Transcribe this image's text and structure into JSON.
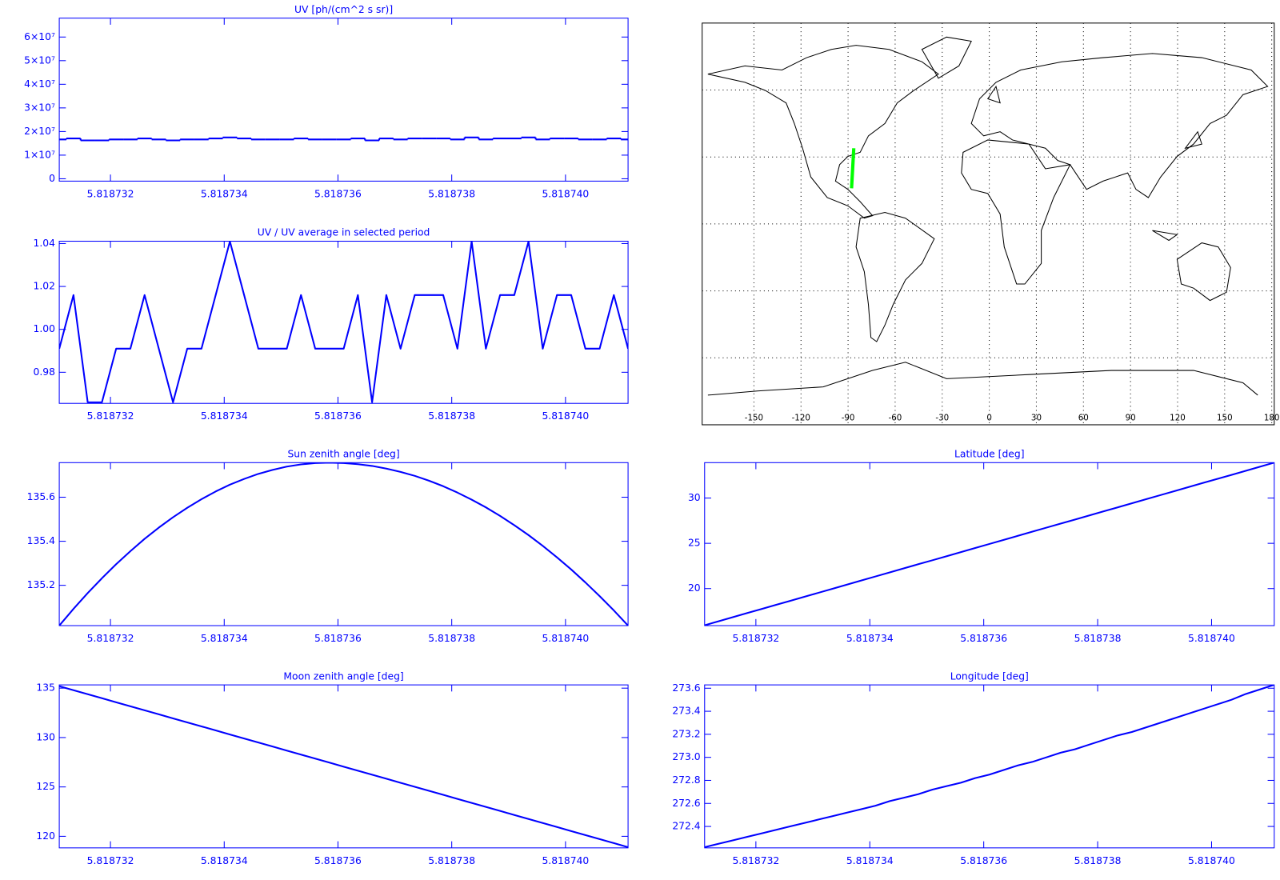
{
  "chart_data": [
    {
      "type": "line",
      "title": "UV [ph/(cm^2 s sr)]",
      "drawstyle": "steps",
      "color": "#0000ff",
      "x": [
        5.8187311,
        5.81873135,
        5.8187316,
        5.81873185,
        5.8187321,
        5.81873235,
        5.8187326,
        5.81873285,
        5.8187331,
        5.81873335,
        5.8187336,
        5.81873385,
        5.8187341,
        5.81873435,
        5.8187346,
        5.81873485,
        5.8187351,
        5.81873535,
        5.8187356,
        5.81873585,
        5.8187361,
        5.81873635,
        5.8187366,
        5.81873685,
        5.8187371,
        5.81873735,
        5.8187376,
        5.81873785,
        5.8187381,
        5.81873835,
        5.8187386,
        5.81873885,
        5.8187391,
        5.81873935,
        5.8187396,
        5.81873985,
        5.8187401,
        5.81874035,
        5.8187406,
        5.81874085,
        5.8187411
      ],
      "values": [
        16650000,
        17070000,
        16230000,
        16230000,
        16650000,
        16650000,
        17070000,
        16650000,
        16230000,
        16650000,
        16650000,
        17070000,
        17490000,
        17070000,
        16650000,
        16650000,
        16650000,
        17070000,
        16650000,
        16650000,
        16650000,
        17070000,
        16230000,
        17070000,
        16650000,
        17070000,
        17070000,
        17070000,
        16650000,
        17490000,
        16650000,
        17070000,
        17070000,
        17490000,
        16650000,
        17070000,
        17070000,
        16650000,
        16650000,
        17070000,
        16650000
      ],
      "xlim": [
        5.8187311,
        5.8187411
      ],
      "xticks": [
        5.818732,
        5.818734,
        5.818736,
        5.818738,
        {
          "value": 5.81874,
          "label": "5.818740"
        }
      ],
      "ylim": [
        -1000000,
        68000000
      ],
      "yticks": [
        0,
        {
          "value": 10000000,
          "label": "1×10⁷"
        },
        {
          "value": 20000000,
          "label": "2×10⁷"
        },
        {
          "value": 30000000,
          "label": "3×10⁷"
        },
        {
          "value": 40000000,
          "label": "4×10⁷"
        },
        {
          "value": 50000000,
          "label": "5×10⁷"
        },
        {
          "value": 60000000,
          "label": "6×10⁷"
        }
      ]
    },
    {
      "type": "line",
      "title": "UV / UV average in selected period",
      "color": "#0000ff",
      "x": [
        5.8187311,
        5.81873135,
        5.8187316,
        5.81873185,
        5.8187321,
        5.81873235,
        5.8187326,
        5.81873285,
        5.8187331,
        5.81873335,
        5.8187336,
        5.81873385,
        5.8187341,
        5.81873435,
        5.8187346,
        5.81873485,
        5.8187351,
        5.81873535,
        5.8187356,
        5.81873585,
        5.8187361,
        5.81873635,
        5.8187366,
        5.81873685,
        5.8187371,
        5.81873735,
        5.8187376,
        5.81873785,
        5.8187381,
        5.81873835,
        5.8187386,
        5.81873885,
        5.8187391,
        5.81873935,
        5.8187396,
        5.81873985,
        5.8187401,
        5.81874035,
        5.8187406,
        5.81874085,
        5.8187411
      ],
      "values": [
        0.991,
        1.016,
        0.966,
        0.966,
        0.991,
        0.991,
        1.016,
        0.991,
        0.966,
        0.991,
        0.991,
        1.016,
        1.041,
        1.016,
        0.991,
        0.991,
        0.991,
        1.016,
        0.991,
        0.991,
        0.991,
        1.016,
        0.966,
        1.016,
        0.991,
        1.016,
        1.016,
        1.016,
        0.991,
        1.041,
        0.991,
        1.016,
        1.016,
        1.041,
        0.991,
        1.016,
        1.016,
        0.991,
        0.991,
        1.016,
        0.991
      ],
      "xlim": [
        5.8187311,
        5.8187411
      ],
      "xticks": [
        5.818732,
        5.818734,
        5.818736,
        5.818738,
        {
          "value": 5.81874,
          "label": "5.818740"
        }
      ],
      "ylim": [
        0.9655,
        1.0411
      ],
      "yticks": [
        0.98,
        {
          "value": 1,
          "label": "1.00"
        },
        1.02,
        1.04
      ]
    },
    {
      "type": "line",
      "title": "Sun zenith angle [deg]",
      "color": "#0000ff",
      "x": [
        5.8187311,
        5.81873135,
        5.8187316,
        5.81873185,
        5.8187321,
        5.81873235,
        5.8187326,
        5.81873285,
        5.8187331,
        5.81873335,
        5.8187336,
        5.81873385,
        5.8187341,
        5.81873435,
        5.8187346,
        5.81873485,
        5.8187351,
        5.81873535,
        5.8187356,
        5.81873585,
        5.8187361,
        5.81873635,
        5.8187366,
        5.81873685,
        5.8187371,
        5.81873735,
        5.8187376,
        5.81873785,
        5.8187381,
        5.81873835,
        5.8187386,
        5.81873885,
        5.8187391,
        5.81873935,
        5.8187396,
        5.81873985,
        5.8187401,
        5.81874035,
        5.8187406,
        5.81874085,
        5.8187411
      ],
      "values": [
        135.017,
        135.093,
        135.165,
        135.232,
        135.296,
        135.355,
        135.411,
        135.462,
        135.509,
        135.552,
        135.591,
        135.626,
        135.657,
        135.683,
        135.706,
        135.724,
        135.739,
        135.749,
        135.755,
        135.757,
        135.755,
        135.75,
        135.742,
        135.73,
        135.715,
        135.697,
        135.675,
        135.65,
        135.621,
        135.589,
        135.554,
        135.515,
        135.473,
        135.428,
        135.379,
        135.327,
        135.272,
        135.213,
        135.151,
        135.086,
        135.017
      ],
      "xlim": [
        5.8187311,
        5.8187411
      ],
      "xticks": [
        5.818732,
        5.818734,
        5.818736,
        5.818738,
        {
          "value": 5.81874,
          "label": "5.818740"
        }
      ],
      "ylim": [
        135.017,
        135.757
      ],
      "yticks": [
        135.2,
        135.4,
        135.6
      ]
    },
    {
      "type": "line",
      "title": "Moon zenith angle [deg]",
      "color": "#0000ff",
      "x": [
        5.8187311,
        5.81873135,
        5.8187316,
        5.81873185,
        5.8187321,
        5.81873235,
        5.8187326,
        5.81873285,
        5.8187331,
        5.81873335,
        5.8187336,
        5.81873385,
        5.8187341,
        5.81873435,
        5.8187346,
        5.81873485,
        5.8187351,
        5.81873535,
        5.8187356,
        5.81873585,
        5.8187361,
        5.81873635,
        5.8187366,
        5.81873685,
        5.8187371,
        5.81873735,
        5.8187376,
        5.81873785,
        5.8187381,
        5.81873835,
        5.8187386,
        5.81873885,
        5.8187391,
        5.81873935,
        5.8187396,
        5.81873985,
        5.8187401,
        5.81874035,
        5.8187406,
        5.81874085,
        5.8187411
      ],
      "values": [
        135.2,
        134.79,
        134.39,
        133.98,
        133.57,
        133.16,
        132.76,
        132.35,
        131.94,
        131.53,
        131.13,
        130.72,
        130.31,
        129.9,
        129.5,
        129.09,
        128.68,
        128.27,
        127.87,
        127.46,
        127.05,
        126.64,
        126.24,
        125.83,
        125.42,
        125.01,
        124.61,
        124.2,
        123.79,
        123.38,
        122.98,
        122.57,
        122.16,
        121.75,
        121.35,
        120.94,
        120.53,
        120.12,
        119.72,
        119.31,
        118.9
      ],
      "xlim": [
        5.8187311,
        5.8187411
      ],
      "xticks": [
        5.818732,
        5.818734,
        5.818736,
        5.818738,
        {
          "value": 5.81874,
          "label": "5.818740"
        }
      ],
      "ylim": [
        118.83,
        135.33
      ],
      "yticks": [
        120,
        125,
        130,
        135
      ]
    },
    {
      "type": "map",
      "color": "#00ff00",
      "x": [
        -87.78,
        -87.43,
        -87.07,
        -86.72,
        -86.37
      ],
      "values": [
        15.95,
        20.44,
        24.93,
        29.42,
        33.91
      ],
      "xlim": [
        -183,
        181.6
      ],
      "xticks": [
        -150,
        -120,
        -90,
        -60,
        -30,
        0,
        30,
        60,
        90,
        120,
        150,
        180
      ],
      "ylim": [
        -90,
        90
      ],
      "ygrid": [
        -60,
        -30,
        0,
        30,
        60
      ]
    },
    {
      "type": "line",
      "title": "Latitude [deg]",
      "color": "#0000ff",
      "x": [
        5.8187311,
        5.81873135,
        5.8187316,
        5.81873185,
        5.8187321,
        5.81873235,
        5.8187326,
        5.81873285,
        5.8187331,
        5.81873335,
        5.8187336,
        5.81873385,
        5.8187341,
        5.81873435,
        5.8187346,
        5.81873485,
        5.8187351,
        5.81873535,
        5.8187356,
        5.81873585,
        5.8187361,
        5.81873635,
        5.8187366,
        5.81873685,
        5.8187371,
        5.81873735,
        5.8187376,
        5.81873785,
        5.8187381,
        5.81873835,
        5.8187386,
        5.81873885,
        5.8187391,
        5.81873935,
        5.8187396,
        5.81873985,
        5.8187401,
        5.81874035,
        5.8187406,
        5.81874085,
        5.8187411
      ],
      "values": [
        15.95,
        16.4,
        16.85,
        17.3,
        17.75,
        18.2,
        18.64,
        19.09,
        19.54,
        19.99,
        20.44,
        20.89,
        21.34,
        21.79,
        22.24,
        22.69,
        23.13,
        23.58,
        24.03,
        24.48,
        24.93,
        25.38,
        25.83,
        26.28,
        26.73,
        27.18,
        27.62,
        28.07,
        28.52,
        28.97,
        29.42,
        29.87,
        30.32,
        30.77,
        31.22,
        31.67,
        32.11,
        32.56,
        33.01,
        33.46,
        33.91
      ],
      "xlim": [
        5.8187311,
        5.8187411
      ],
      "xticks": [
        5.818732,
        5.818734,
        5.818736,
        5.818738,
        {
          "value": 5.81874,
          "label": "5.818740"
        }
      ],
      "ylim": [
        15.91,
        33.91
      ],
      "yticks": [
        20,
        25,
        30
      ]
    },
    {
      "type": "line",
      "title": "Longitude [deg]",
      "color": "#0000ff",
      "x": [
        5.8187311,
        5.81873135,
        5.8187316,
        5.81873185,
        5.8187321,
        5.81873235,
        5.8187326,
        5.81873285,
        5.8187331,
        5.81873335,
        5.8187336,
        5.81873385,
        5.8187341,
        5.81873435,
        5.8187346,
        5.81873485,
        5.8187351,
        5.81873535,
        5.8187356,
        5.81873585,
        5.8187361,
        5.81873635,
        5.8187366,
        5.81873685,
        5.8187371,
        5.81873735,
        5.8187376,
        5.81873785,
        5.8187381,
        5.81873835,
        5.8187386,
        5.81873885,
        5.8187391,
        5.81873935,
        5.8187396,
        5.81873985,
        5.8187401,
        5.81874035,
        5.8187406,
        5.81874085,
        5.8187411
      ],
      "values": [
        272.22,
        272.25,
        272.28,
        272.31,
        272.34,
        272.37,
        272.4,
        272.43,
        272.46,
        272.49,
        272.52,
        272.55,
        272.58,
        272.62,
        272.65,
        272.68,
        272.72,
        272.75,
        272.78,
        272.82,
        272.85,
        272.89,
        272.93,
        272.96,
        273,
        273.04,
        273.07,
        273.11,
        273.15,
        273.19,
        273.22,
        273.26,
        273.3,
        273.34,
        273.38,
        273.42,
        273.46,
        273.5,
        273.55,
        273.59,
        273.63
      ],
      "xlim": [
        5.8187311,
        5.8187411
      ],
      "xticks": [
        5.818732,
        5.818734,
        5.818736,
        5.818738,
        {
          "value": 5.81874,
          "label": "5.818740"
        }
      ],
      "ylim": [
        272.214,
        273.629
      ],
      "yticks": [
        272.4,
        272.6,
        272.8,
        {
          "value": 273,
          "label": "273.0"
        },
        273.2,
        273.4,
        273.6
      ]
    }
  ]
}
